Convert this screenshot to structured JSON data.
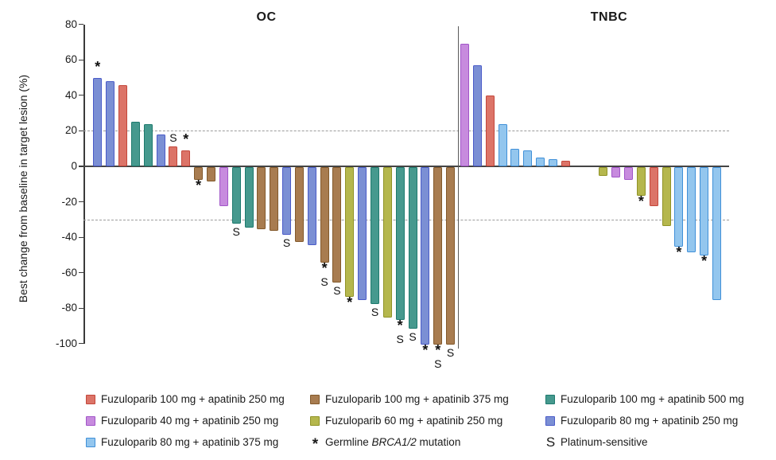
{
  "chart_data": {
    "type": "bar",
    "subtype": "waterfall",
    "ylabel": "Best change from baseline in target lesion (%)",
    "ylim": [
      -100,
      80
    ],
    "yticks": [
      80,
      60,
      40,
      20,
      0,
      -20,
      -40,
      -60,
      -80,
      -100
    ],
    "thresholds": {
      "upper": 20,
      "lower": -30
    },
    "grid": "off",
    "series": {
      "red": {
        "label": "Fuzuloparib 100 mg + apatinib 250 mg",
        "fill": "#DC7468",
        "stroke": "#C4473B"
      },
      "brown": {
        "label": "Fuzuloparib 100 mg + apatinib 375 mg",
        "fill": "#A87C50",
        "stroke": "#82592B"
      },
      "teal": {
        "label": "Fuzuloparib 100 mg + apatinib 500 mg",
        "fill": "#46998E",
        "stroke": "#1E7A6E"
      },
      "orchid": {
        "label": "Fuzuloparib 40 mg + apatinib 250 mg",
        "fill": "#C78BDE",
        "stroke": "#A155C8"
      },
      "yellowgreen": {
        "label": "Fuzuloparib 60 mg + apatinib 250 mg",
        "fill": "#B5B74D",
        "stroke": "#909326"
      },
      "royalblue": {
        "label": "Fuzuloparib 80 mg + apatinib 250 mg",
        "fill": "#7B8FD4",
        "stroke": "#4A5BC8"
      },
      "skyblue": {
        "label": "Fuzuloparib 80 mg + apatinib 375 mg",
        "fill": "#93C6EE",
        "stroke": "#4090D8"
      }
    },
    "annotation_key": {
      "star_symbol": "*",
      "star_label_parts": [
        "Germline ",
        "BRCA1/2",
        " mutation"
      ],
      "s_symbol": "S",
      "s_label": "Platinum-sensitive"
    },
    "panels": [
      {
        "title": "OC",
        "bars": [
          {
            "color": "royalblue",
            "value": 50,
            "marks": [
              "*"
            ]
          },
          {
            "color": "royalblue",
            "value": 48
          },
          {
            "color": "red",
            "value": 46
          },
          {
            "color": "teal",
            "value": 25
          },
          {
            "color": "teal",
            "value": 24
          },
          {
            "color": "royalblue",
            "value": 18
          },
          {
            "color": "red",
            "value": 11,
            "marks": [
              "S"
            ]
          },
          {
            "color": "red",
            "value": 9,
            "marks": [
              "*"
            ]
          },
          {
            "color": "brown",
            "value": -7,
            "marks": [
              "*"
            ]
          },
          {
            "color": "brown",
            "value": -8
          },
          {
            "color": "orchid",
            "value": -22
          },
          {
            "color": "teal",
            "value": -32,
            "marks": [
              "S"
            ]
          },
          {
            "color": "teal",
            "value": -34
          },
          {
            "color": "brown",
            "value": -35
          },
          {
            "color": "brown",
            "value": -36
          },
          {
            "color": "royalblue",
            "value": -38,
            "marks": [
              "S"
            ]
          },
          {
            "color": "brown",
            "value": -42
          },
          {
            "color": "royalblue",
            "value": -44
          },
          {
            "color": "brown",
            "value": -54,
            "marks": [
              "*",
              "S"
            ]
          },
          {
            "color": "brown",
            "value": -65,
            "marks": [
              "S"
            ]
          },
          {
            "color": "yellowgreen",
            "value": -73,
            "marks": [
              "*"
            ]
          },
          {
            "color": "royalblue",
            "value": -75
          },
          {
            "color": "teal",
            "value": -77,
            "marks": [
              "S"
            ]
          },
          {
            "color": "yellowgreen",
            "value": -85
          },
          {
            "color": "teal",
            "value": -86,
            "marks": [
              "*",
              "S"
            ]
          },
          {
            "color": "teal",
            "value": -91,
            "marks": [
              "S"
            ]
          },
          {
            "color": "royalblue",
            "value": -100,
            "marks": [
              "*"
            ]
          },
          {
            "color": "brown",
            "value": -100,
            "marks": [
              "*",
              "S"
            ]
          },
          {
            "color": "brown",
            "value": -100,
            "marks": [
              "S"
            ]
          }
        ]
      },
      {
        "title": "TNBC",
        "gap_after_index": 8,
        "gap_slots": 2,
        "bars": [
          {
            "color": "orchid",
            "value": 69
          },
          {
            "color": "royalblue",
            "value": 57
          },
          {
            "color": "red",
            "value": 40
          },
          {
            "color": "skyblue",
            "value": 24
          },
          {
            "color": "skyblue",
            "value": 10
          },
          {
            "color": "skyblue",
            "value": 9
          },
          {
            "color": "skyblue",
            "value": 5
          },
          {
            "color": "skyblue",
            "value": 4
          },
          {
            "color": "red",
            "value": 3
          },
          {
            "color": "yellowgreen",
            "value": -5
          },
          {
            "color": "orchid",
            "value": -6
          },
          {
            "color": "orchid",
            "value": -7
          },
          {
            "color": "yellowgreen",
            "value": -16,
            "marks": [
              "*"
            ]
          },
          {
            "color": "red",
            "value": -22
          },
          {
            "color": "yellowgreen",
            "value": -33
          },
          {
            "color": "skyblue",
            "value": -45,
            "marks": [
              "*"
            ]
          },
          {
            "color": "skyblue",
            "value": -48
          },
          {
            "color": "skyblue",
            "value": -50,
            "marks": [
              "*"
            ]
          },
          {
            "color": "skyblue",
            "value": -75
          }
        ]
      }
    ],
    "legend": {
      "columns": [
        {
          "items": [
            {
              "type": "swatch",
              "series": "red"
            },
            {
              "type": "swatch",
              "series": "orchid"
            },
            {
              "type": "swatch",
              "series": "skyblue"
            }
          ]
        },
        {
          "items": [
            {
              "type": "swatch",
              "series": "brown"
            },
            {
              "type": "swatch",
              "series": "yellowgreen"
            },
            {
              "type": "symbol",
              "symbol": "*",
              "label_parts": [
                "Germline ",
                "BRCA1/2",
                " mutation"
              ]
            }
          ]
        },
        {
          "items": [
            {
              "type": "swatch",
              "series": "teal"
            },
            {
              "type": "swatch",
              "series": "royalblue"
            },
            {
              "type": "symbol",
              "symbol": "S",
              "label": "Platinum-sensitive"
            }
          ]
        }
      ]
    }
  }
}
